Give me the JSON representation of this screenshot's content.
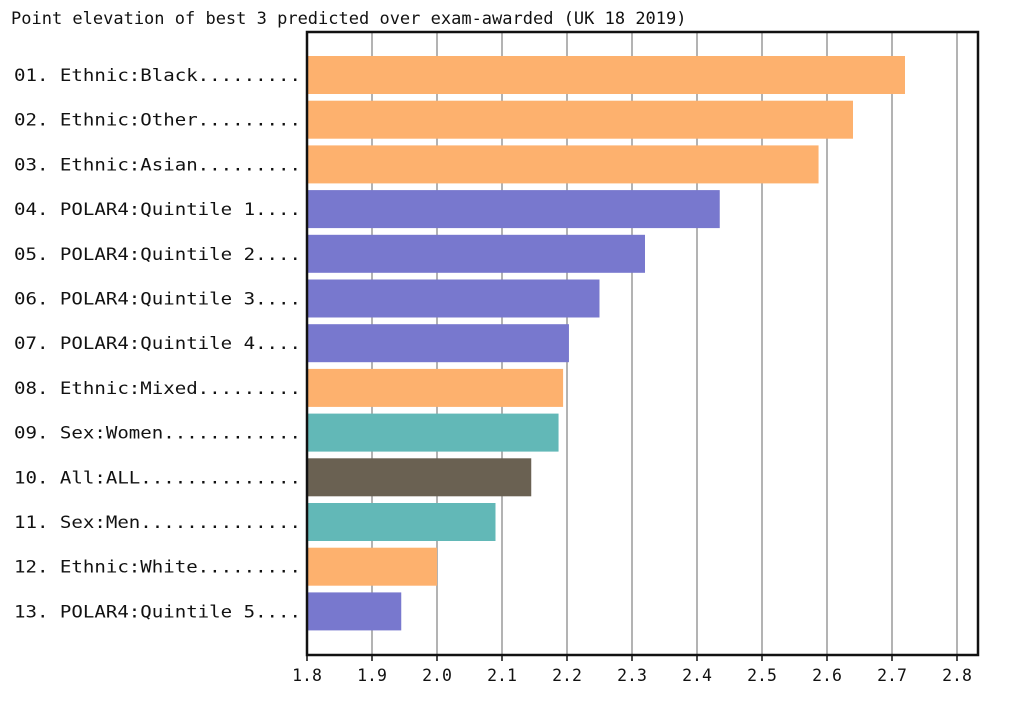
{
  "chart_data": {
    "type": "bar",
    "orientation": "horizontal",
    "title": "Point elevation of best 3 predicted  over exam-awarded (UK 18 2019)",
    "xlabel": "",
    "ylabel": "",
    "xlim": [
      1.8,
      2.83
    ],
    "xticks": [
      "1.8",
      "1.9",
      "2.0",
      "2.1",
      "2.2",
      "2.3",
      "2.4",
      "2.5",
      "2.6",
      "2.7",
      "2.8"
    ],
    "grid": "vertical",
    "colors": {
      "Ethnic": "#FDB16E",
      "POLAR4": "#7878CE",
      "Sex": "#62B8B7",
      "All": "#6A6152"
    },
    "bars": [
      {
        "label": "01. Ethnic:Black.........",
        "group": "Ethnic",
        "value": 2.72
      },
      {
        "label": "02. Ethnic:Other.........",
        "group": "Ethnic",
        "value": 2.64
      },
      {
        "label": "03. Ethnic:Asian.........",
        "group": "Ethnic",
        "value": 2.587
      },
      {
        "label": "04. POLAR4:Quintile 1....",
        "group": "POLAR4",
        "value": 2.435
      },
      {
        "label": "05. POLAR4:Quintile 2....",
        "group": "POLAR4",
        "value": 2.32
      },
      {
        "label": "06. POLAR4:Quintile 3....",
        "group": "POLAR4",
        "value": 2.25
      },
      {
        "label": "07. POLAR4:Quintile 4....",
        "group": "POLAR4",
        "value": 2.203
      },
      {
        "label": "08. Ethnic:Mixed.........",
        "group": "Ethnic",
        "value": 2.194
      },
      {
        "label": "09. Sex:Women............",
        "group": "Sex",
        "value": 2.187
      },
      {
        "label": "10. All:ALL..............",
        "group": "All",
        "value": 2.145
      },
      {
        "label": "11. Sex:Men..............",
        "group": "Sex",
        "value": 2.09
      },
      {
        "label": "12. Ethnic:White.........",
        "group": "Ethnic",
        "value": 2.0
      },
      {
        "label": "13. POLAR4:Quintile 5....",
        "group": "POLAR4",
        "value": 1.945
      }
    ]
  }
}
